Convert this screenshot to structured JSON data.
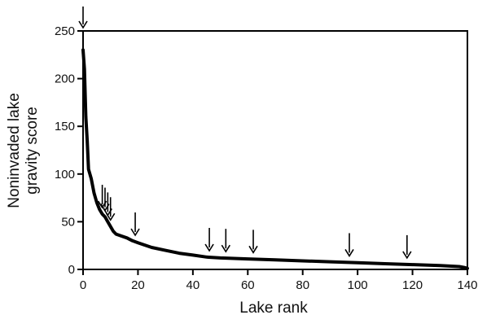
{
  "chart_data": {
    "type": "line",
    "title": "",
    "xlabel": "Lake rank",
    "ylabel_lines": [
      "Noninvaded lake",
      "gravity score"
    ],
    "xlim": [
      0,
      140
    ],
    "ylim": [
      0,
      250
    ],
    "xticks": [
      0,
      20,
      40,
      60,
      80,
      100,
      120,
      140
    ],
    "yticks": [
      0,
      50,
      100,
      150,
      200,
      250
    ],
    "grid": false,
    "legend": "none",
    "line_color": "#000000",
    "series": [
      {
        "x": [
          0,
          0.5,
          1,
          1.5,
          2,
          3,
          4,
          5,
          6,
          7,
          8,
          9,
          10,
          11,
          12,
          14,
          16,
          18,
          20,
          25,
          30,
          35,
          40,
          45,
          50,
          60,
          70,
          80,
          90,
          100,
          110,
          120,
          130,
          137,
          139,
          140
        ],
        "y": [
          230,
          210,
          160,
          135,
          105,
          95,
          80,
          70,
          63,
          58,
          55,
          50,
          45,
          40,
          37,
          35,
          33,
          30,
          28,
          23,
          20,
          17,
          15,
          13,
          12,
          11,
          10,
          9,
          8,
          7,
          6,
          5,
          4,
          3,
          2,
          1
        ]
      }
    ],
    "arrows_x": [
      0,
      7,
      8,
      9,
      10,
      19,
      46,
      52,
      62,
      97,
      118
    ]
  }
}
